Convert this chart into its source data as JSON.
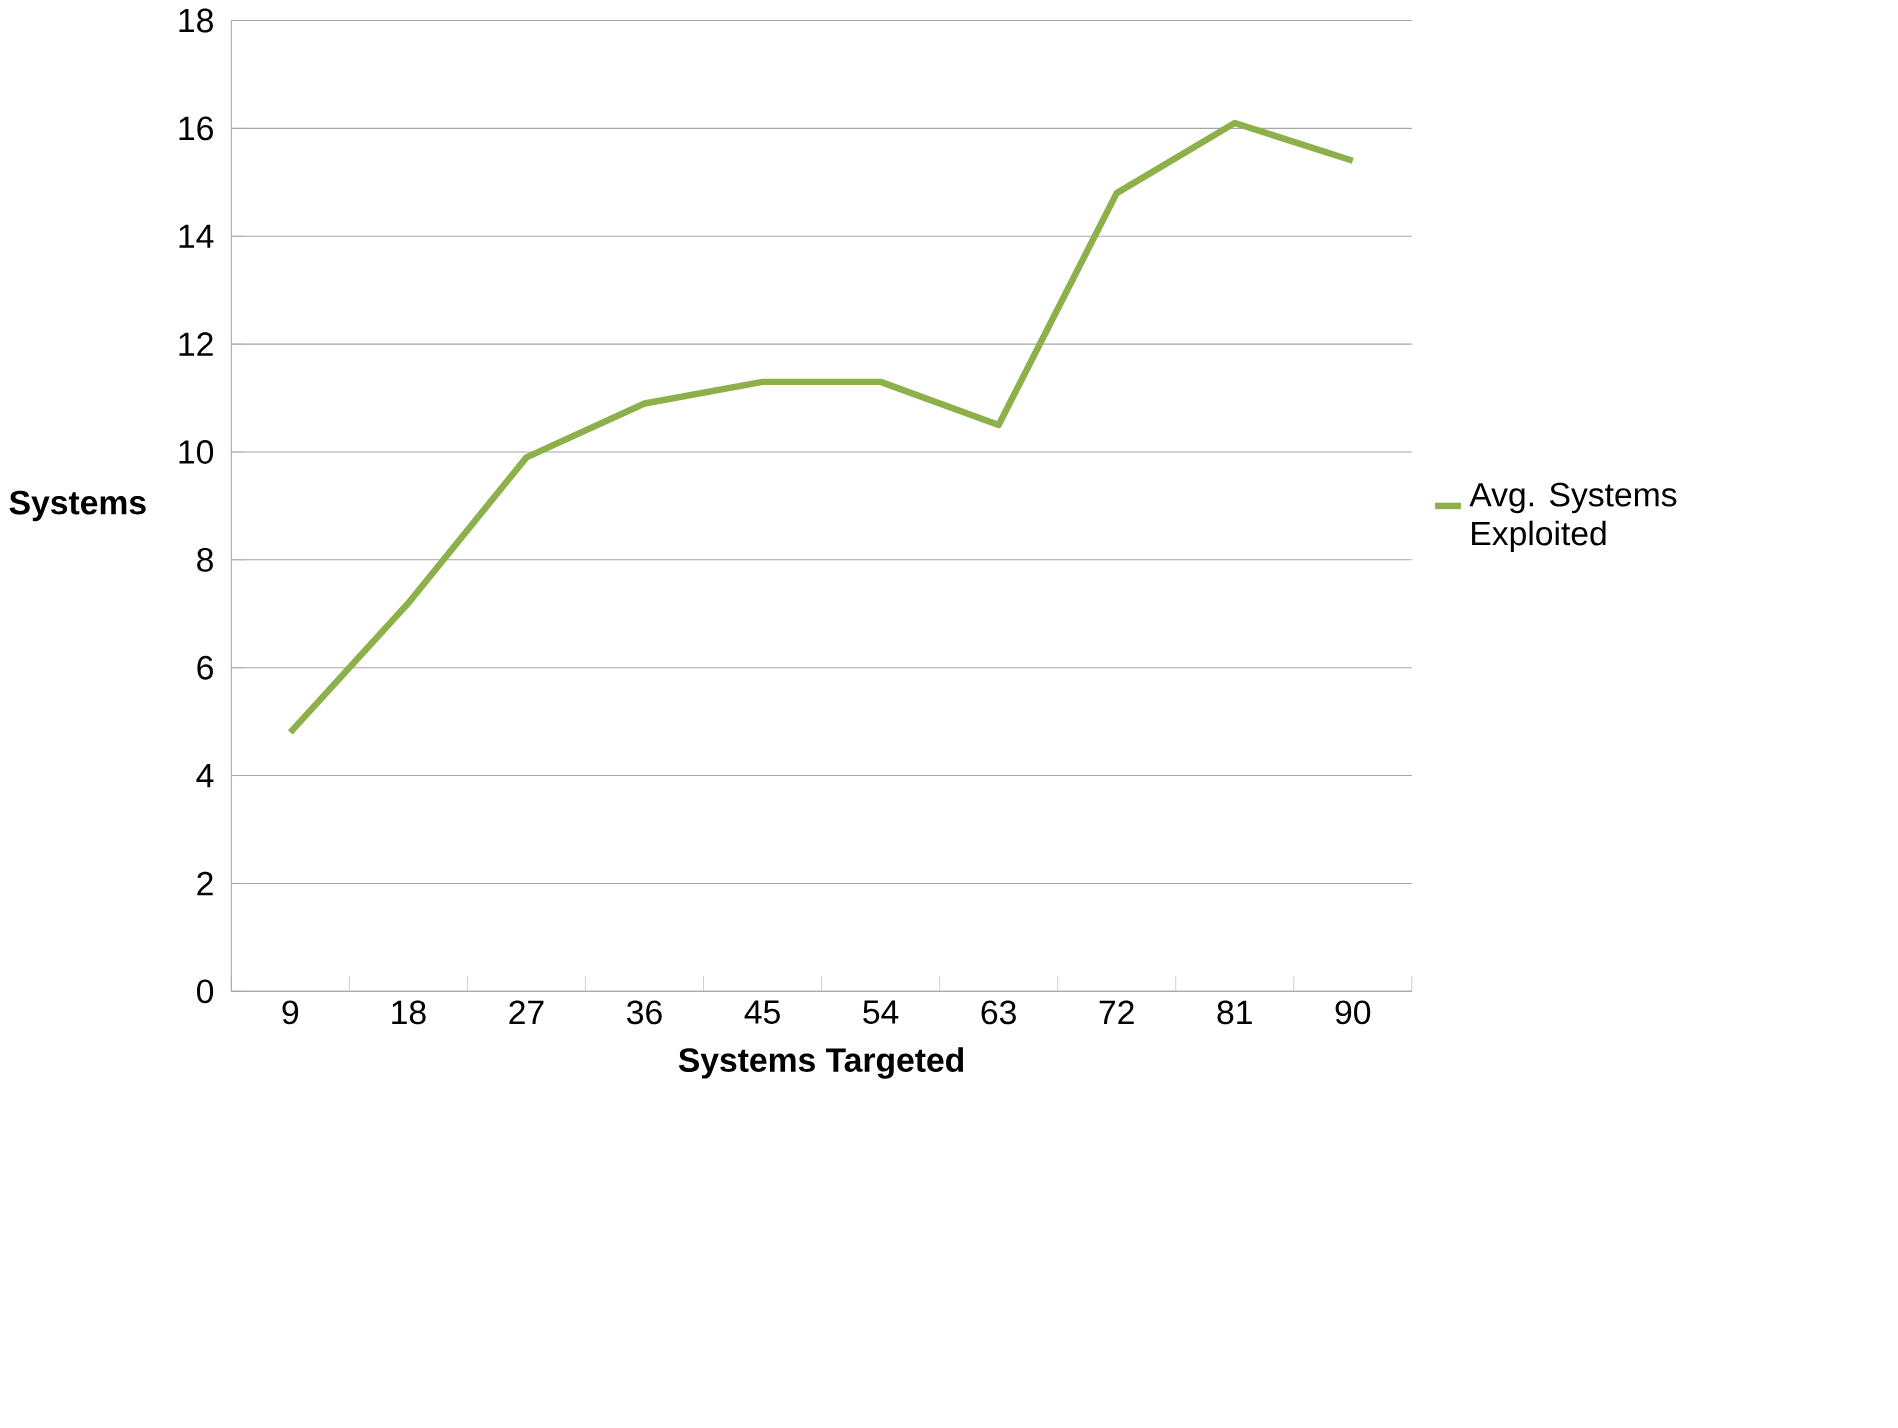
{
  "chart_data": {
    "type": "line",
    "xlabel": "Systems Targeted",
    "ylabel": "Systems",
    "categories": [
      "9",
      "18",
      "27",
      "36",
      "45",
      "54",
      "63",
      "72",
      "81",
      "90"
    ],
    "series": [
      {
        "name": "Avg. Systems Exploited",
        "color": "#8db04a",
        "values": [
          4.8,
          7.2,
          9.9,
          10.9,
          11.3,
          11.3,
          10.5,
          14.8,
          16.1,
          15.4
        ]
      }
    ],
    "ylim": [
      0,
      18
    ],
    "yticks": [
      0,
      2,
      4,
      6,
      8,
      10,
      12,
      14,
      16,
      18
    ],
    "grid": "y",
    "legend": "right",
    "marker": "none",
    "line_style": "solid"
  }
}
